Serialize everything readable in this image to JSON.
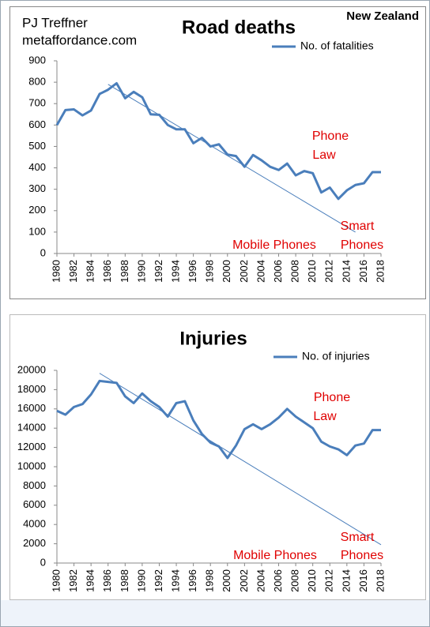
{
  "header": {
    "author": "PJ Treffner",
    "site": "metaffordance.com",
    "region": "New Zealand"
  },
  "chart_data": [
    {
      "type": "line",
      "title": "Road deaths",
      "x": [
        1980,
        1981,
        1982,
        1983,
        1984,
        1985,
        1986,
        1987,
        1988,
        1989,
        1990,
        1991,
        1992,
        1993,
        1994,
        1995,
        1996,
        1997,
        1998,
        1999,
        2000,
        2001,
        2002,
        2003,
        2004,
        2005,
        2006,
        2007,
        2008,
        2009,
        2010,
        2011,
        2012,
        2013,
        2014,
        2015,
        2016,
        2017,
        2018
      ],
      "series": [
        {
          "name": "No. of fatalities",
          "color": "#4a7ebb",
          "values": [
            600,
            670,
            673,
            645,
            668,
            745,
            765,
            795,
            725,
            755,
            730,
            650,
            648,
            600,
            580,
            580,
            515,
            540,
            500,
            510,
            462,
            455,
            405,
            460,
            435,
            405,
            390,
            420,
            365,
            385,
            375,
            285,
            308,
            255,
            295,
            320,
            328,
            380,
            380
          ]
        }
      ],
      "trendline": {
        "x": [
          1986,
          2015
        ],
        "values": [
          790,
          100
        ]
      },
      "xlim": [
        1980,
        2018
      ],
      "xticks": [
        1980,
        1982,
        1984,
        1986,
        1988,
        1990,
        1992,
        1994,
        1996,
        1998,
        2000,
        2002,
        2004,
        2006,
        2008,
        2010,
        2012,
        2014,
        2016,
        2018
      ],
      "ylim": [
        0,
        900
      ],
      "yticks": [
        0,
        100,
        200,
        300,
        400,
        500,
        600,
        700,
        800,
        900
      ],
      "annotations": [
        "Phone",
        "Law",
        "Mobile Phones",
        "Smart",
        "Phones"
      ]
    },
    {
      "type": "line",
      "title": "Injuries",
      "x": [
        1980,
        1981,
        1982,
        1983,
        1984,
        1985,
        1986,
        1987,
        1988,
        1989,
        1990,
        1991,
        1992,
        1993,
        1994,
        1995,
        1996,
        1997,
        1998,
        1999,
        2000,
        2001,
        2002,
        2003,
        2004,
        2005,
        2006,
        2007,
        2008,
        2009,
        2010,
        2011,
        2012,
        2013,
        2014,
        2015,
        2016,
        2017,
        2018
      ],
      "series": [
        {
          "name": "No. of injuries",
          "color": "#4a7ebb",
          "values": [
            15800,
            15400,
            16200,
            16500,
            17500,
            18900,
            18800,
            18700,
            17300,
            16600,
            17600,
            16800,
            16200,
            15200,
            16600,
            16800,
            14800,
            13400,
            12500,
            12100,
            10900,
            12200,
            13900,
            14400,
            13900,
            14400,
            15100,
            16000,
            15200,
            14600,
            14000,
            12600,
            12100,
            11800,
            11200,
            12200,
            12400,
            13800,
            13800
          ]
        }
      ],
      "trendline": {
        "x": [
          1985,
          2018
        ],
        "values": [
          19700,
          1900
        ]
      },
      "xlim": [
        1980,
        2018
      ],
      "xticks": [
        1980,
        1982,
        1984,
        1986,
        1988,
        1990,
        1992,
        1994,
        1996,
        1998,
        2000,
        2002,
        2004,
        2006,
        2008,
        2010,
        2012,
        2014,
        2016,
        2018
      ],
      "ylim": [
        0,
        20000
      ],
      "yticks": [
        0,
        2000,
        4000,
        6000,
        8000,
        10000,
        12000,
        14000,
        16000,
        18000,
        20000
      ],
      "annotations": [
        "Phone",
        "Law",
        "Mobile Phones",
        "Smart",
        "Phones"
      ]
    }
  ]
}
